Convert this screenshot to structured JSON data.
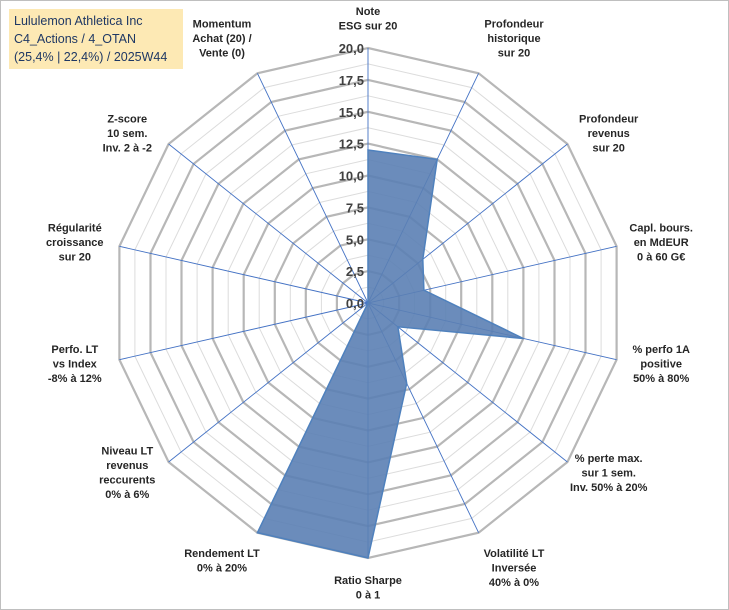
{
  "title": {
    "line1": "Lululemon Athletica Inc",
    "line2": "C4_Actions / 4_OTAN",
    "line3": "(25,4% | 22,4%) / 2025W44"
  },
  "chart_data": {
    "type": "radar",
    "rmin": 0,
    "rmax": 20,
    "ticks": [
      "0,0",
      "2,5",
      "5,0",
      "7,5",
      "10,0",
      "12,5",
      "15,0",
      "17,5",
      "20,0"
    ],
    "axes": [
      {
        "label": [
          "Note",
          "ESG sur 20"
        ],
        "value": 12.0
      },
      {
        "label": [
          "Profondeur",
          "historique",
          "sur 20"
        ],
        "value": 12.5
      },
      {
        "label": [
          "Profondeur",
          "revenus",
          "sur 20"
        ],
        "value": 5.5
      },
      {
        "label": [
          "Capl. bours.",
          "en MdEUR",
          "0 à 60 G€"
        ],
        "value": 4.5
      },
      {
        "label": [
          "% perfo 1A",
          "positive",
          "50% à 80%"
        ],
        "value": 12.5
      },
      {
        "label": [
          "% perte max.",
          "sur 1 sem.",
          "Inv. 50% à 20%"
        ],
        "value": 3.0
      },
      {
        "label": [
          "Volatilité LT",
          "Inversée",
          "40% à 0%"
        ],
        "value": 7.0
      },
      {
        "label": [
          "Ratio Sharpe",
          "0 à 1"
        ],
        "value": 20.0
      },
      {
        "label": [
          "Rendement LT",
          "0% à 20%"
        ],
        "value": 20.0
      },
      {
        "label": [
          "Niveau LT",
          "revenus",
          "reccurents",
          "0% à 6%"
        ],
        "value": 0.0
      },
      {
        "label": [
          "Perfo. LT",
          "vs Index",
          "-8% à 12%"
        ],
        "value": 0.0
      },
      {
        "label": [
          "Régularité",
          "croissance",
          "sur 20"
        ],
        "value": 0.0
      },
      {
        "label": [
          "Z-score",
          "10 sem.",
          "Inv. 2 à -2"
        ],
        "value": 0.0
      },
      {
        "label": [
          "Momentum",
          "Achat (20) /",
          "Vente (0)"
        ],
        "value": 0.0
      }
    ],
    "series": [
      {
        "color": "#4f81bd",
        "fill": "#5b7fb4"
      }
    ]
  }
}
